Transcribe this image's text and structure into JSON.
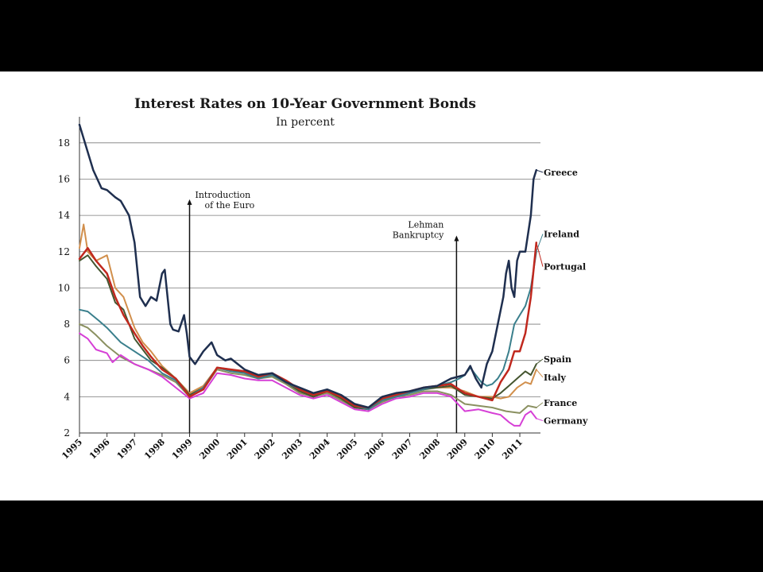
{
  "chart_data": {
    "type": "line",
    "title": "Interest Rates on 10-Year Government Bonds",
    "subtitle": "In percent",
    "xlabel": "",
    "ylabel": "",
    "xlim": [
      1995,
      2011.75
    ],
    "ylim": [
      2,
      19
    ],
    "yticks": [
      2,
      4,
      6,
      8,
      10,
      12,
      14,
      16,
      18
    ],
    "xticks": [
      "1995",
      "1996",
      "1997",
      "1998",
      "1999",
      "2000",
      "2001",
      "2002",
      "2003",
      "2004",
      "2005",
      "2006",
      "2007",
      "2008",
      "2009",
      "2010",
      "2011"
    ],
    "grid": "horizontal",
    "legend": "direct labels at right end of lines",
    "annotations": [
      {
        "text": [
          "Introduction",
          "of the Euro"
        ],
        "x": 1999.0,
        "top": 14.8
      },
      {
        "text": [
          "Lehman",
          "Bankruptcy"
        ],
        "x": 2008.7,
        "top": 12.8
      }
    ],
    "series": [
      {
        "name": "Greece",
        "color": "#1f2f4f",
        "width": 2.5,
        "label_y": 16.2,
        "x": [
          1995.0,
          1995.2,
          1995.5,
          1995.8,
          1996.0,
          1996.3,
          1996.5,
          1996.8,
          1997.0,
          1997.2,
          1997.4,
          1997.6,
          1997.8,
          1998.0,
          1998.1,
          1998.3,
          1998.4,
          1998.6,
          1998.8,
          1998.9,
          1999.0,
          1999.2,
          1999.5,
          1999.8,
          2000.0,
          2000.3,
          2000.5,
          2001.0,
          2001.5,
          2002.0,
          2002.5,
          2003.0,
          2003.5,
          2004.0,
          2004.5,
          2005.0,
          2005.5,
          2006.0,
          2006.5,
          2007.0,
          2007.5,
          2008.0,
          2008.5,
          2009.0,
          2009.2,
          2009.4,
          2009.6,
          2009.8,
          2010.0,
          2010.2,
          2010.4,
          2010.5,
          2010.6,
          2010.7,
          2010.8,
          2010.9,
          2011.0,
          2011.2,
          2011.4,
          2011.5,
          2011.6
        ],
        "y": [
          19.0,
          18.0,
          16.5,
          15.5,
          15.4,
          15.0,
          14.8,
          14.0,
          12.5,
          9.5,
          9.0,
          9.5,
          9.3,
          10.8,
          11.0,
          8.0,
          7.7,
          7.6,
          8.5,
          7.5,
          6.2,
          5.8,
          6.5,
          7.0,
          6.3,
          6.0,
          6.1,
          5.5,
          5.2,
          5.3,
          4.8,
          4.5,
          4.2,
          4.4,
          4.1,
          3.6,
          3.4,
          4.0,
          4.2,
          4.3,
          4.5,
          4.6,
          5.0,
          5.2,
          5.7,
          5.0,
          4.5,
          5.8,
          6.5,
          8.0,
          9.5,
          10.8,
          11.5,
          10.0,
          9.5,
          11.5,
          12.0,
          12.0,
          14.0,
          16.0,
          16.5
        ]
      },
      {
        "name": "Ireland",
        "color": "#3a7f8c",
        "width": 2,
        "label_y": 12.8,
        "x": [
          1995.0,
          1995.3,
          1995.7,
          1996.0,
          1996.5,
          1997.0,
          1997.5,
          1998.0,
          1998.5,
          1999.0,
          1999.5,
          2000.0,
          2000.5,
          2001.0,
          2001.5,
          2002.0,
          2002.5,
          2003.0,
          2003.5,
          2004.0,
          2004.5,
          2005.0,
          2005.5,
          2006.0,
          2006.5,
          2007.0,
          2007.5,
          2008.0,
          2008.5,
          2008.8,
          2009.0,
          2009.2,
          2009.4,
          2009.6,
          2009.8,
          2010.0,
          2010.2,
          2010.4,
          2010.6,
          2010.8,
          2011.0,
          2011.2,
          2011.4,
          2011.6
        ],
        "y": [
          8.8,
          8.7,
          8.2,
          7.8,
          7.0,
          6.5,
          6.0,
          5.3,
          4.9,
          4.0,
          4.5,
          5.6,
          5.4,
          5.3,
          5.0,
          5.2,
          4.8,
          4.4,
          4.1,
          4.3,
          4.0,
          3.5,
          3.3,
          3.8,
          4.0,
          4.2,
          4.4,
          4.6,
          4.8,
          5.0,
          5.2,
          5.6,
          5.2,
          4.8,
          4.6,
          4.7,
          5.0,
          5.5,
          6.5,
          8.0,
          8.5,
          9.0,
          10.0,
          12.0
        ]
      },
      {
        "name": "Portugal",
        "color": "#c0281e",
        "width": 2.5,
        "label_y": 11.0,
        "x": [
          1995.0,
          1995.3,
          1995.6,
          1996.0,
          1996.3,
          1996.6,
          1997.0,
          1997.3,
          1997.6,
          1998.0,
          1998.5,
          1999.0,
          1999.5,
          2000.0,
          2000.5,
          2001.0,
          2001.5,
          2002.0,
          2002.5,
          2003.0,
          2003.5,
          2004.0,
          2004.5,
          2005.0,
          2005.5,
          2006.0,
          2006.5,
          2007.0,
          2007.5,
          2008.0,
          2008.5,
          2009.0,
          2009.5,
          2010.0,
          2010.3,
          2010.6,
          2010.8,
          2011.0,
          2011.2,
          2011.4,
          2011.6
        ],
        "y": [
          11.6,
          12.2,
          11.5,
          10.8,
          9.5,
          8.5,
          7.5,
          6.8,
          6.2,
          5.5,
          5.0,
          4.0,
          4.4,
          5.6,
          5.5,
          5.4,
          5.1,
          5.3,
          4.9,
          4.4,
          4.1,
          4.3,
          4.0,
          3.5,
          3.4,
          3.9,
          4.1,
          4.3,
          4.5,
          4.6,
          4.7,
          4.2,
          4.0,
          3.8,
          4.8,
          5.5,
          6.5,
          6.5,
          7.5,
          9.5,
          12.5
        ]
      },
      {
        "name": "Spain",
        "color": "#44552f",
        "width": 2,
        "label_y": 5.9,
        "x": [
          1995.0,
          1995.3,
          1995.6,
          1996.0,
          1996.3,
          1996.6,
          1997.0,
          1997.3,
          1997.6,
          1998.0,
          1998.5,
          1999.0,
          1999.5,
          2000.0,
          2000.5,
          2001.0,
          2001.5,
          2002.0,
          2002.5,
          2003.0,
          2003.5,
          2004.0,
          2004.5,
          2005.0,
          2005.5,
          2006.0,
          2006.5,
          2007.0,
          2007.5,
          2008.0,
          2008.5,
          2009.0,
          2009.5,
          2010.0,
          2010.3,
          2010.6,
          2010.9,
          2011.2,
          2011.4,
          2011.6
        ],
        "y": [
          11.5,
          11.8,
          11.2,
          10.5,
          9.2,
          8.8,
          7.2,
          6.6,
          6.0,
          5.6,
          5.0,
          4.1,
          4.5,
          5.6,
          5.5,
          5.3,
          5.0,
          5.2,
          4.8,
          4.3,
          4.0,
          4.3,
          3.9,
          3.4,
          3.3,
          3.8,
          4.0,
          4.2,
          4.4,
          4.5,
          4.6,
          4.1,
          4.0,
          3.9,
          4.2,
          4.6,
          5.0,
          5.4,
          5.2,
          5.8
        ]
      },
      {
        "name": "Italy",
        "color": "#d18f4c",
        "width": 2,
        "label_y": 4.9,
        "x": [
          1995.0,
          1995.15,
          1995.3,
          1995.6,
          1996.0,
          1996.3,
          1996.6,
          1997.0,
          1997.3,
          1997.6,
          1998.0,
          1998.5,
          1999.0,
          1999.5,
          2000.0,
          2000.5,
          2001.0,
          2001.5,
          2002.0,
          2002.5,
          2003.0,
          2003.5,
          2004.0,
          2004.5,
          2005.0,
          2005.5,
          2006.0,
          2006.5,
          2007.0,
          2007.5,
          2008.0,
          2008.5,
          2009.0,
          2009.5,
          2010.0,
          2010.3,
          2010.6,
          2010.9,
          2011.2,
          2011.4,
          2011.6
        ],
        "y": [
          12.2,
          13.5,
          12.0,
          11.5,
          11.8,
          10.0,
          9.5,
          7.8,
          7.0,
          6.5,
          5.7,
          5.0,
          4.2,
          4.6,
          5.6,
          5.5,
          5.4,
          5.1,
          5.2,
          4.8,
          4.3,
          4.0,
          4.3,
          4.0,
          3.5,
          3.4,
          3.9,
          4.1,
          4.3,
          4.5,
          4.5,
          4.5,
          4.3,
          4.0,
          4.0,
          3.9,
          4.0,
          4.5,
          4.8,
          4.7,
          5.5
        ]
      },
      {
        "name": "France",
        "color": "#8a9060",
        "width": 2,
        "label_y": 3.5,
        "x": [
          1995.0,
          1995.3,
          1995.6,
          1996.0,
          1996.5,
          1997.0,
          1997.5,
          1998.0,
          1998.5,
          1999.0,
          1999.5,
          2000.0,
          2000.5,
          2001.0,
          2001.5,
          2002.0,
          2002.5,
          2003.0,
          2003.5,
          2004.0,
          2004.5,
          2005.0,
          2005.5,
          2006.0,
          2006.5,
          2007.0,
          2007.5,
          2008.0,
          2008.5,
          2009.0,
          2009.5,
          2010.0,
          2010.5,
          2011.0,
          2011.3,
          2011.6
        ],
        "y": [
          8.0,
          7.8,
          7.4,
          6.8,
          6.2,
          5.8,
          5.5,
          5.2,
          4.8,
          4.0,
          4.4,
          5.5,
          5.3,
          5.2,
          5.0,
          5.1,
          4.7,
          4.2,
          4.0,
          4.2,
          3.8,
          3.4,
          3.3,
          3.7,
          4.0,
          4.1,
          4.3,
          4.3,
          4.1,
          3.6,
          3.5,
          3.4,
          3.2,
          3.1,
          3.5,
          3.4
        ]
      },
      {
        "name": "Germany",
        "color": "#d63fd6",
        "width": 2,
        "label_y": 2.5,
        "x": [
          1995.0,
          1995.3,
          1995.6,
          1996.0,
          1996.2,
          1996.5,
          1997.0,
          1997.5,
          1998.0,
          1998.5,
          1999.0,
          1999.5,
          2000.0,
          2000.5,
          2001.0,
          2001.5,
          2002.0,
          2002.5,
          2003.0,
          2003.5,
          2004.0,
          2004.5,
          2005.0,
          2005.5,
          2006.0,
          2006.5,
          2007.0,
          2007.5,
          2008.0,
          2008.5,
          2009.0,
          2009.5,
          2010.0,
          2010.3,
          2010.6,
          2010.8,
          2011.0,
          2011.2,
          2011.4,
          2011.6
        ],
        "y": [
          7.5,
          7.2,
          6.6,
          6.4,
          5.9,
          6.3,
          5.8,
          5.5,
          5.1,
          4.5,
          3.9,
          4.2,
          5.3,
          5.2,
          5.0,
          4.9,
          4.9,
          4.5,
          4.1,
          3.9,
          4.1,
          3.7,
          3.3,
          3.2,
          3.6,
          3.9,
          4.0,
          4.2,
          4.2,
          4.0,
          3.2,
          3.3,
          3.1,
          3.0,
          2.6,
          2.4,
          2.4,
          3.0,
          3.2,
          2.8
        ]
      }
    ]
  }
}
